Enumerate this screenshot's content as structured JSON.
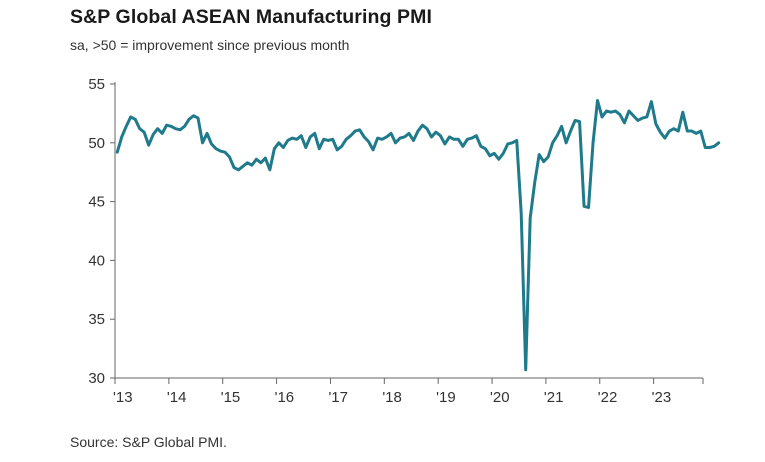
{
  "title": "S&P Global ASEAN Manufacturing PMI",
  "subtitle": "sa, >50 = improvement since previous month",
  "source": "Source: S&P Global PMI.",
  "colors": {
    "line": "#1f7a8c",
    "axis": "#666666",
    "text": "#333333"
  },
  "chart_data": {
    "type": "line",
    "title": "S&P Global ASEAN Manufacturing PMI",
    "subtitle": "sa, >50 = improvement since previous month",
    "xlabel": "",
    "ylabel": "",
    "ylim": [
      30,
      55
    ],
    "yticks": [
      30,
      35,
      40,
      45,
      50,
      55
    ],
    "xlim": [
      "2013-01",
      "2023-11"
    ],
    "xticks": [
      "'13",
      "'14",
      "'15",
      "'16",
      "'17",
      "'18",
      "'19",
      "'20",
      "'21",
      "'22",
      "'23"
    ],
    "grid": false,
    "legend": "none",
    "series": [
      {
        "x_start": "2013-01",
        "frequency": "monthly",
        "values": [
          49.2,
          50.5,
          51.4,
          52.2,
          52.0,
          51.2,
          50.9,
          49.8,
          50.7,
          51.2,
          50.8,
          51.5,
          51.4,
          51.2,
          51.1,
          51.4,
          52.0,
          52.3,
          52.1,
          50.0,
          50.8,
          49.9,
          49.5,
          49.3,
          49.2,
          48.8,
          47.9,
          47.7,
          48.0,
          48.3,
          48.1,
          48.6,
          48.3,
          48.7,
          47.7,
          49.5,
          50.0,
          49.6,
          50.2,
          50.4,
          50.3,
          50.6,
          49.6,
          50.5,
          50.8,
          49.5,
          50.3,
          50.2,
          50.3,
          49.4,
          49.7,
          50.3,
          50.6,
          51.0,
          51.1,
          50.5,
          50.1,
          49.4,
          50.4,
          50.3,
          50.5,
          50.8,
          50.0,
          50.4,
          50.5,
          50.8,
          50.2,
          51.0,
          51.5,
          51.2,
          50.5,
          50.9,
          50.6,
          49.9,
          50.5,
          50.3,
          50.3,
          49.7,
          50.3,
          50.4,
          50.6,
          49.7,
          49.5,
          48.9,
          49.1,
          48.6,
          49.1,
          49.9,
          50.0,
          50.2,
          44.0,
          30.7,
          43.6,
          46.6,
          49.0,
          48.4,
          48.8,
          50.0,
          50.6,
          51.4,
          50.0,
          51.0,
          51.9,
          51.8,
          44.6,
          44.5,
          50.0,
          53.6,
          52.2,
          52.7,
          52.6,
          52.7,
          52.4,
          51.7,
          52.7,
          52.3,
          51.9,
          52.1,
          52.2,
          53.5,
          51.6,
          50.9,
          50.4,
          51.0,
          51.2,
          51.0,
          52.6,
          51.0,
          51.0,
          50.8,
          51.0,
          49.6,
          49.6,
          49.7,
          50.0
        ]
      }
    ]
  }
}
